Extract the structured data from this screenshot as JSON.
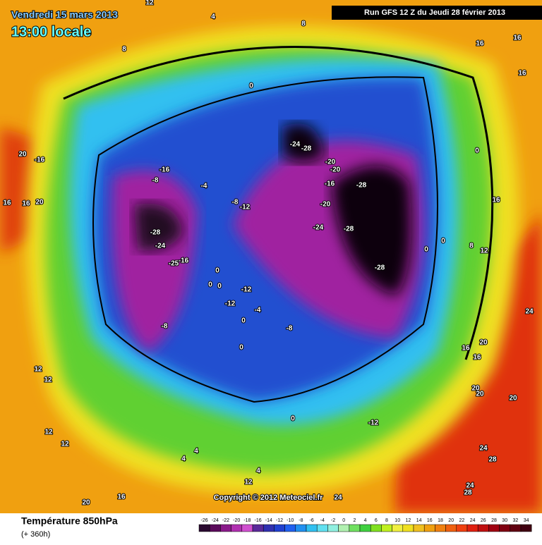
{
  "header": {
    "date": "Vendredi 15 mars 2013",
    "time": "13:00 locale",
    "run": "Run GFS 12 Z du Jeudi 28 février 2013"
  },
  "footer": {
    "title": "Température 850hPa",
    "lead": "(+ 360h)",
    "copyright": "Copyright © 2012 Meteociel.fr"
  },
  "legend": {
    "ticks": [
      -26,
      -24,
      -22,
      -20,
      -18,
      -16,
      -14,
      -12,
      -10,
      -8,
      -6,
      -4,
      -2,
      0,
      2,
      4,
      6,
      8,
      10,
      12,
      14,
      16,
      18,
      20,
      22,
      24,
      26,
      28,
      30,
      32,
      34
    ],
    "colors": [
      "#2a0a30",
      "#5a0a5a",
      "#8a1a8a",
      "#b030b0",
      "#d050d0",
      "#5a2a9a",
      "#3030b0",
      "#2040d0",
      "#2060f0",
      "#2090f0",
      "#30c0f0",
      "#60e0f0",
      "#90f0e0",
      "#b0f0b0",
      "#70e060",
      "#40d040",
      "#80e020",
      "#c0f020",
      "#f0f040",
      "#f0e020",
      "#f0c020",
      "#f0a010",
      "#f08010",
      "#f06010",
      "#f04010",
      "#e02010",
      "#c01010",
      "#a00010",
      "#800010",
      "#600010",
      "#400010"
    ]
  },
  "map_labels": [
    "12",
    "4",
    "8",
    "8",
    "16",
    "16",
    "16",
    "0",
    "-24",
    "-28",
    "-20",
    "-20",
    "-16",
    "-8",
    "-4",
    "-16",
    "-28",
    "-8",
    "-12",
    "-20",
    "-28",
    "-24",
    "-24",
    "-28",
    "0",
    "0",
    "8",
    "12",
    "16",
    "-16",
    "-25",
    "-28",
    "0",
    "0",
    "0",
    "-12",
    "-12",
    "-4",
    "-8",
    "0",
    "-8",
    "0",
    "16",
    "16",
    "20",
    "24",
    "20",
    "20",
    "20",
    "0",
    "-12",
    "4",
    "4",
    "4",
    "12",
    "24",
    "28",
    "24",
    "28",
    "24",
    "20",
    "16",
    "12",
    "12",
    "12",
    "12",
    "16",
    "16",
    "20",
    "20",
    "-16",
    "0"
  ]
}
